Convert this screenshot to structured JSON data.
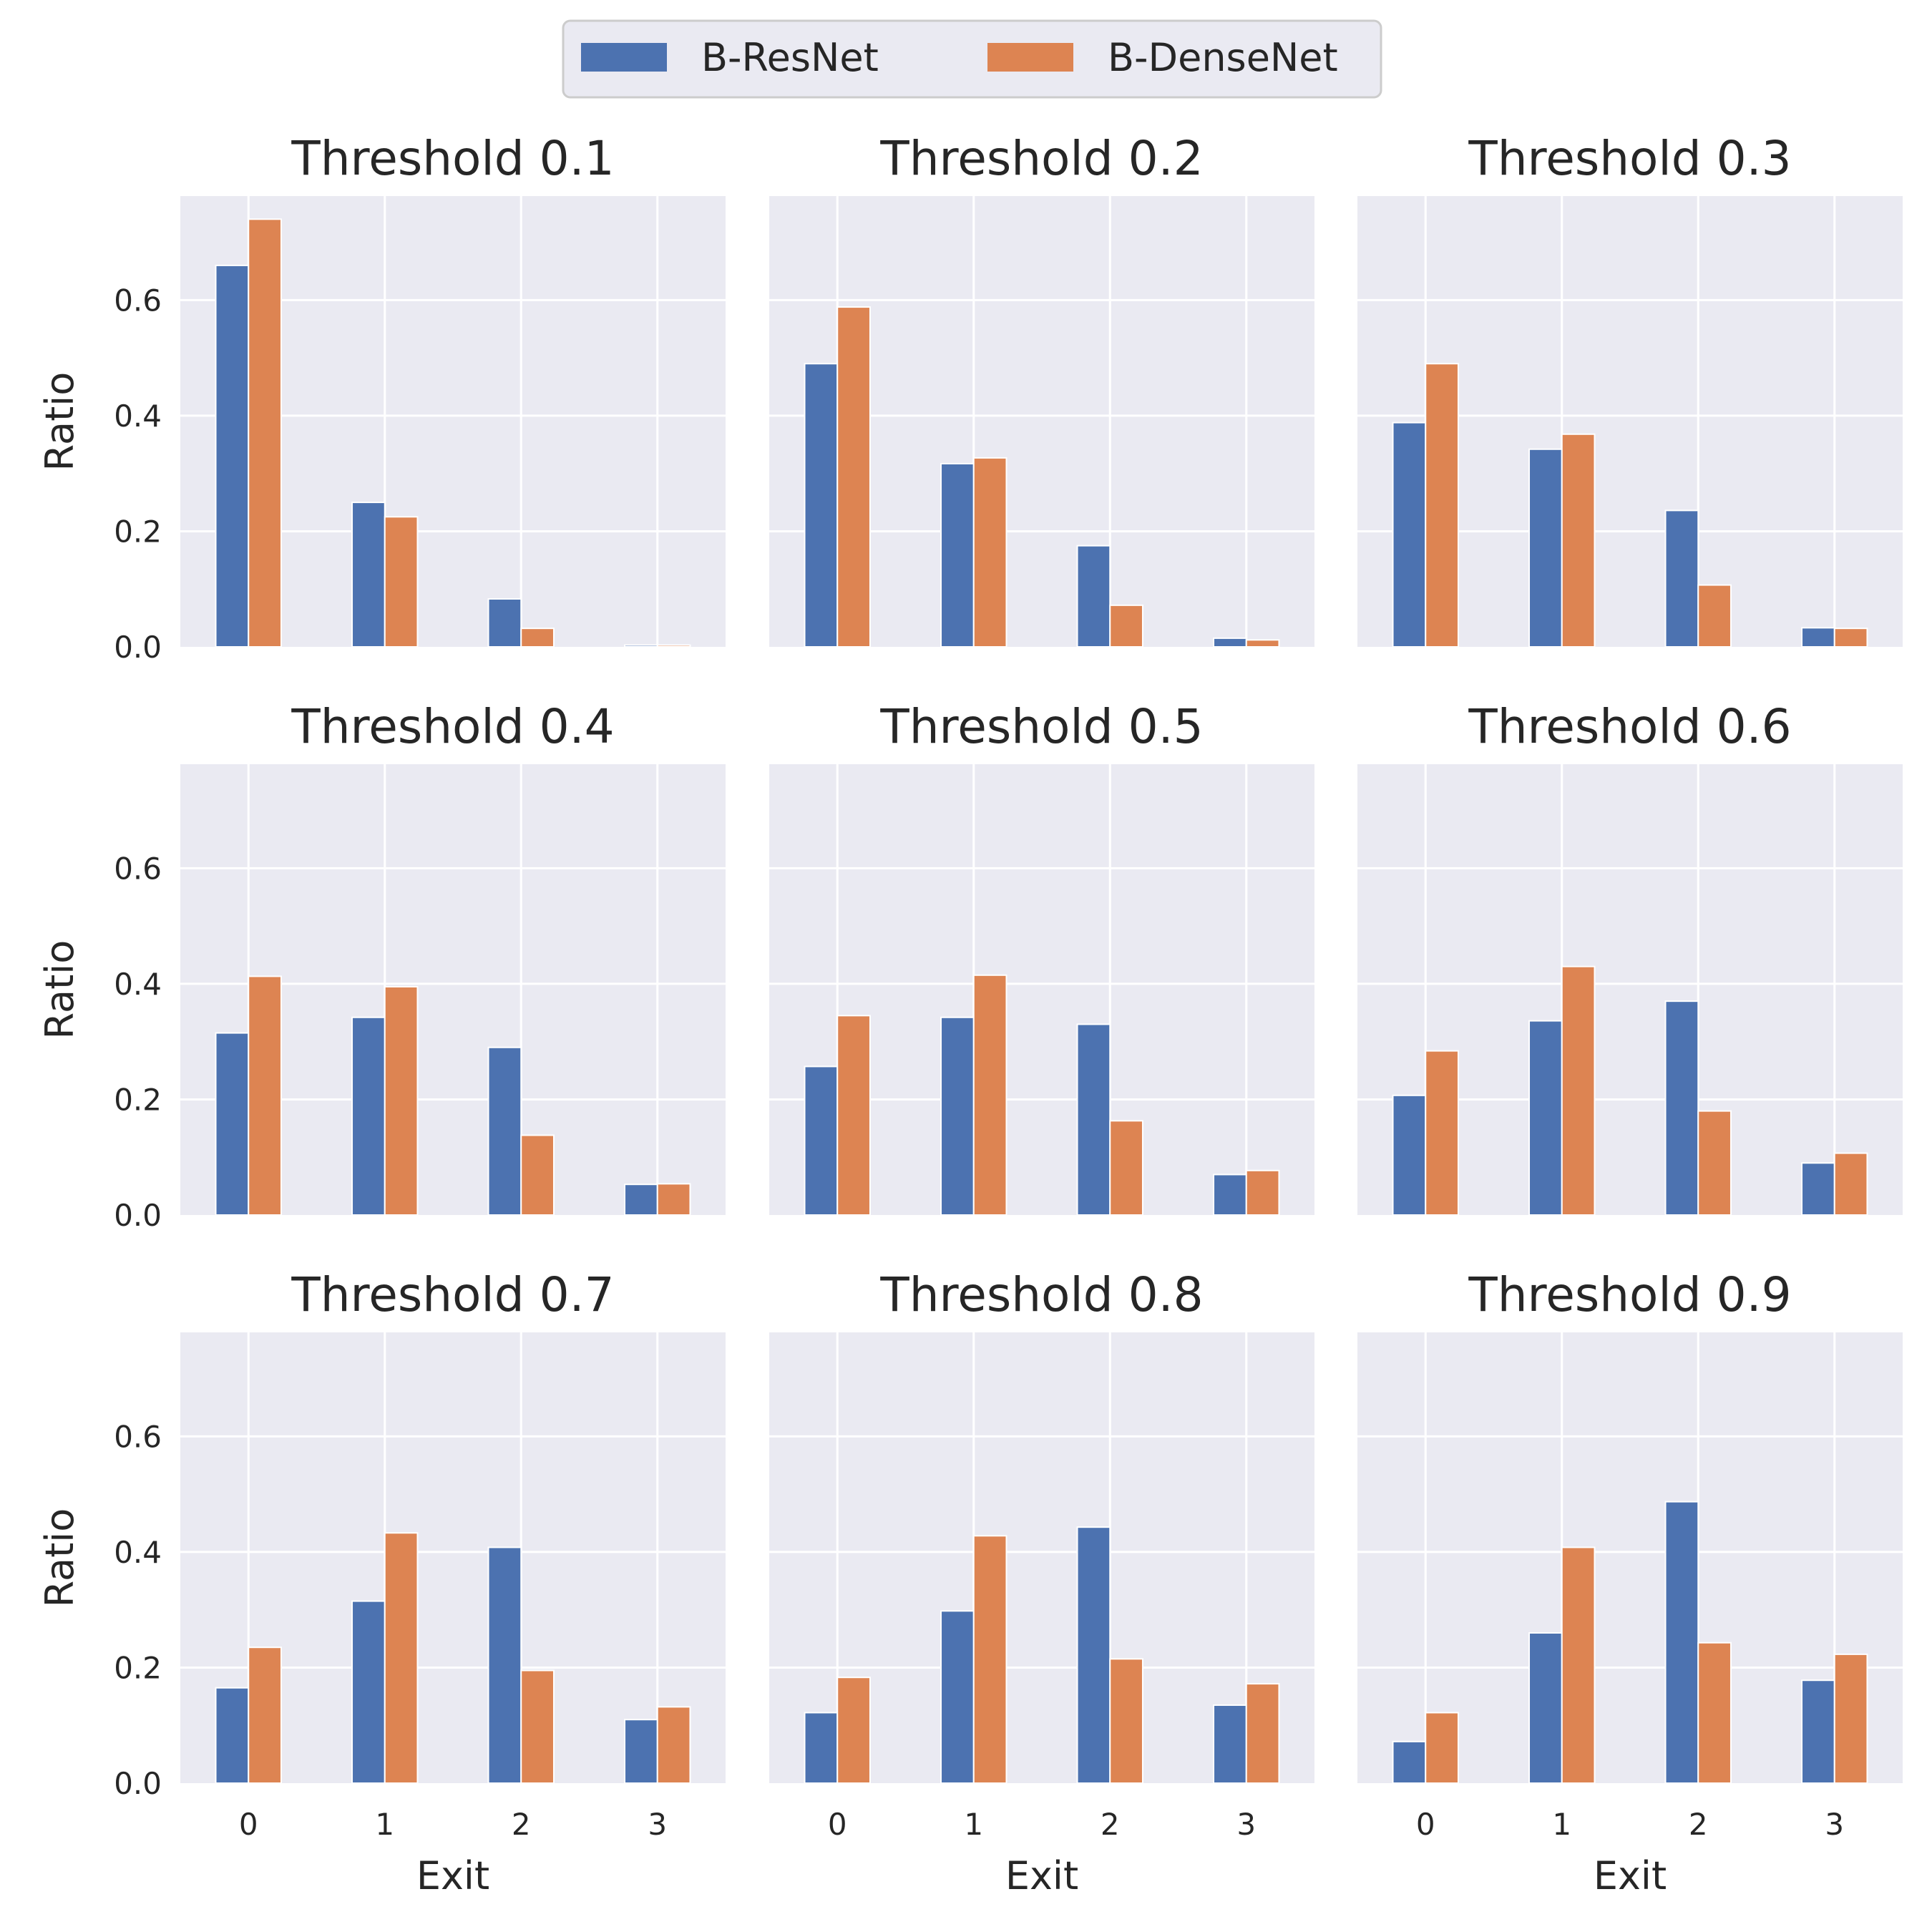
{
  "colors": {
    "B-ResNet": "#4c72b0",
    "B-DenseNet": "#dd8452",
    "panel_bg": "#eaeaf2",
    "grid": "#ffffff"
  },
  "legend": {
    "placement": "top-center",
    "entries": [
      "B-ResNet",
      "B-DenseNet"
    ]
  },
  "chart_data": [
    {
      "type": "bar",
      "title": "Threshold 0.1",
      "xlabel": "",
      "ylabel": "Ratio",
      "categories": [
        "0",
        "1",
        "2",
        "3"
      ],
      "ylim": [
        0,
        0.78
      ],
      "yticks": [
        "0.0",
        "0.2",
        "0.4",
        "0.6"
      ],
      "grid": true,
      "series": [
        {
          "name": "B-ResNet",
          "values": [
            0.66,
            0.25,
            0.083,
            0.003
          ]
        },
        {
          "name": "B-DenseNet",
          "values": [
            0.74,
            0.225,
            0.032,
            0.003
          ]
        }
      ]
    },
    {
      "type": "bar",
      "title": "Threshold 0.2",
      "xlabel": "",
      "ylabel": "",
      "categories": [
        "0",
        "1",
        "2",
        "3"
      ],
      "ylim": [
        0,
        0.78
      ],
      "yticks": [],
      "grid": true,
      "series": [
        {
          "name": "B-ResNet",
          "values": [
            0.49,
            0.317,
            0.175,
            0.015
          ]
        },
        {
          "name": "B-DenseNet",
          "values": [
            0.588,
            0.327,
            0.072,
            0.012
          ]
        }
      ]
    },
    {
      "type": "bar",
      "title": "Threshold 0.3",
      "xlabel": "",
      "ylabel": "",
      "categories": [
        "0",
        "1",
        "2",
        "3"
      ],
      "ylim": [
        0,
        0.78
      ],
      "yticks": [],
      "grid": true,
      "series": [
        {
          "name": "B-ResNet",
          "values": [
            0.388,
            0.342,
            0.236,
            0.033
          ]
        },
        {
          "name": "B-DenseNet",
          "values": [
            0.49,
            0.368,
            0.107,
            0.032
          ]
        }
      ]
    },
    {
      "type": "bar",
      "title": "Threshold 0.4",
      "xlabel": "",
      "ylabel": "Ratio",
      "categories": [
        "0",
        "1",
        "2",
        "3"
      ],
      "ylim": [
        0,
        0.78
      ],
      "yticks": [
        "0.0",
        "0.2",
        "0.4",
        "0.6"
      ],
      "grid": true,
      "series": [
        {
          "name": "B-ResNet",
          "values": [
            0.315,
            0.342,
            0.29,
            0.053
          ]
        },
        {
          "name": "B-DenseNet",
          "values": [
            0.413,
            0.395,
            0.138,
            0.054
          ]
        }
      ]
    },
    {
      "type": "bar",
      "title": "Threshold 0.5",
      "xlabel": "",
      "ylabel": "",
      "categories": [
        "0",
        "1",
        "2",
        "3"
      ],
      "ylim": [
        0,
        0.78
      ],
      "yticks": [],
      "grid": true,
      "series": [
        {
          "name": "B-ResNet",
          "values": [
            0.257,
            0.342,
            0.33,
            0.07
          ]
        },
        {
          "name": "B-DenseNet",
          "values": [
            0.345,
            0.415,
            0.163,
            0.077
          ]
        }
      ]
    },
    {
      "type": "bar",
      "title": "Threshold 0.6",
      "xlabel": "",
      "ylabel": "",
      "categories": [
        "0",
        "1",
        "2",
        "3"
      ],
      "ylim": [
        0,
        0.78
      ],
      "yticks": [],
      "grid": true,
      "series": [
        {
          "name": "B-ResNet",
          "values": [
            0.207,
            0.336,
            0.37,
            0.09
          ]
        },
        {
          "name": "B-DenseNet",
          "values": [
            0.284,
            0.43,
            0.18,
            0.107
          ]
        }
      ]
    },
    {
      "type": "bar",
      "title": "Threshold 0.7",
      "xlabel": "Exit",
      "ylabel": "Ratio",
      "categories": [
        "0",
        "1",
        "2",
        "3"
      ],
      "ylim": [
        0,
        0.78
      ],
      "yticks": [
        "0.0",
        "0.2",
        "0.4",
        "0.6"
      ],
      "grid": true,
      "series": [
        {
          "name": "B-ResNet",
          "values": [
            0.165,
            0.315,
            0.408,
            0.11
          ]
        },
        {
          "name": "B-DenseNet",
          "values": [
            0.235,
            0.433,
            0.195,
            0.132
          ]
        }
      ]
    },
    {
      "type": "bar",
      "title": "Threshold 0.8",
      "xlabel": "Exit",
      "ylabel": "",
      "categories": [
        "0",
        "1",
        "2",
        "3"
      ],
      "ylim": [
        0,
        0.78
      ],
      "yticks": [],
      "grid": true,
      "series": [
        {
          "name": "B-ResNet",
          "values": [
            0.122,
            0.298,
            0.443,
            0.135
          ]
        },
        {
          "name": "B-DenseNet",
          "values": [
            0.183,
            0.428,
            0.215,
            0.172
          ]
        }
      ]
    },
    {
      "type": "bar",
      "title": "Threshold 0.9",
      "xlabel": "Exit",
      "ylabel": "",
      "categories": [
        "0",
        "1",
        "2",
        "3"
      ],
      "ylim": [
        0,
        0.78
      ],
      "yticks": [],
      "grid": true,
      "series": [
        {
          "name": "B-ResNet",
          "values": [
            0.072,
            0.26,
            0.487,
            0.178
          ]
        },
        {
          "name": "B-DenseNet",
          "values": [
            0.122,
            0.408,
            0.243,
            0.223
          ]
        }
      ]
    }
  ]
}
